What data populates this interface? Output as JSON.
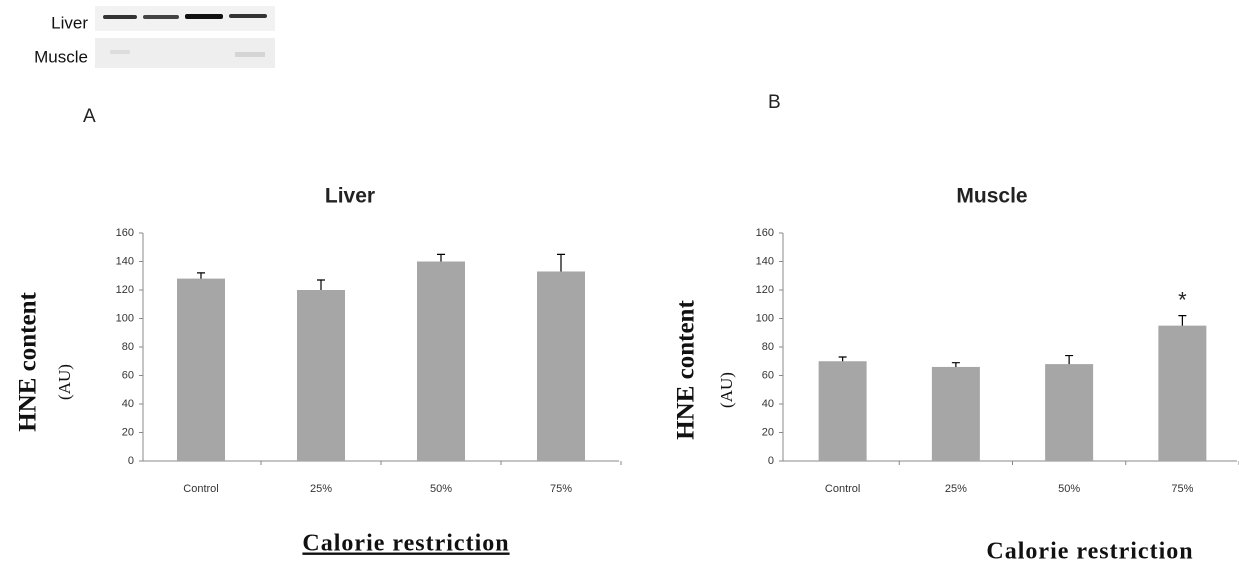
{
  "blot_labels": [
    "Liver",
    "Muscle"
  ],
  "chart_data": [
    {
      "type": "bar",
      "panel": "A",
      "title": "Liver",
      "y_label": "HNE content",
      "y_unit": "(AU)",
      "x_label": "Calorie restriction",
      "categories": [
        "Control",
        "25%",
        "50%",
        "75%"
      ],
      "values": [
        128,
        120,
        140,
        133
      ],
      "errors": [
        4,
        7,
        5,
        12
      ],
      "color": "#a6a6a6",
      "ylim": [
        0,
        160
      ],
      "yticks": [
        0,
        20,
        40,
        60,
        80,
        100,
        120,
        140,
        160
      ]
    },
    {
      "type": "bar",
      "panel": "B",
      "title": "Muscle",
      "y_label": "HNE content",
      "y_unit": "(AU)",
      "x_label": "Calorie restriction",
      "categories": [
        "Control",
        "25%",
        "50%",
        "75%"
      ],
      "values": [
        70,
        66,
        68,
        95
      ],
      "errors": [
        3,
        3,
        6,
        7
      ],
      "color": "#a6a6a6",
      "ylim": [
        0,
        160
      ],
      "yticks": [
        0,
        20,
        40,
        60,
        80,
        100,
        120,
        140,
        160
      ],
      "annotations": [
        {
          "text": "*",
          "x": "75%"
        }
      ]
    }
  ]
}
